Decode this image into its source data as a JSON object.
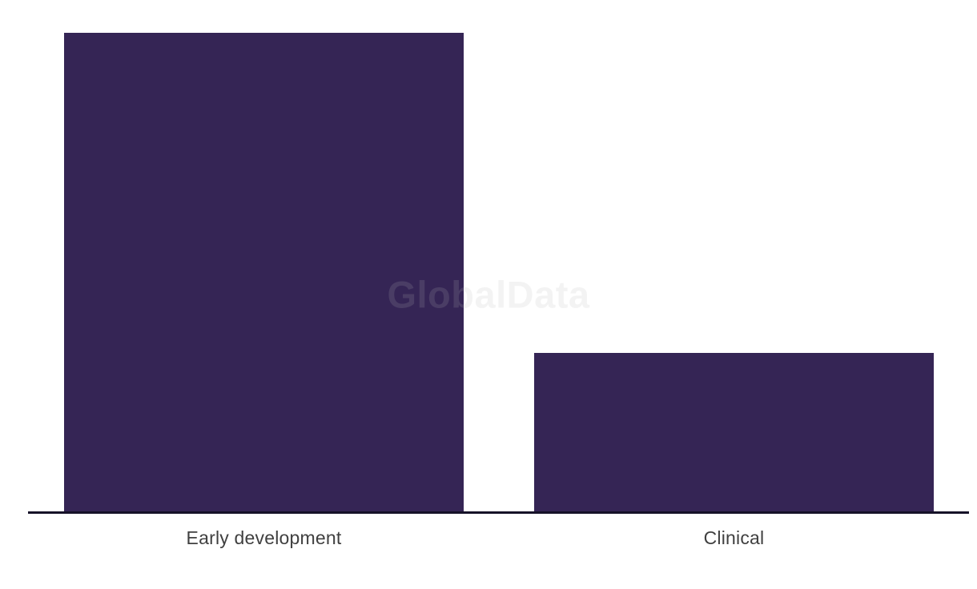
{
  "chart_data": {
    "type": "bar",
    "title": "",
    "xlabel": "",
    "ylabel": "",
    "categories": [
      "Early development",
      "Clinical"
    ],
    "values": [
      598,
      198
    ],
    "values_note": "No y-axis or value labels shown; values are relative bar heights in pixels, ratio approximately 3:1",
    "ylim": [
      0,
      598
    ],
    "grid": false,
    "legend": false,
    "bar_color": "#352555",
    "axis_color": "#161228",
    "label_color": "#404040"
  },
  "watermark": {
    "text": "GlobalData",
    "color": "#bababa",
    "opacity": 0.16
  }
}
